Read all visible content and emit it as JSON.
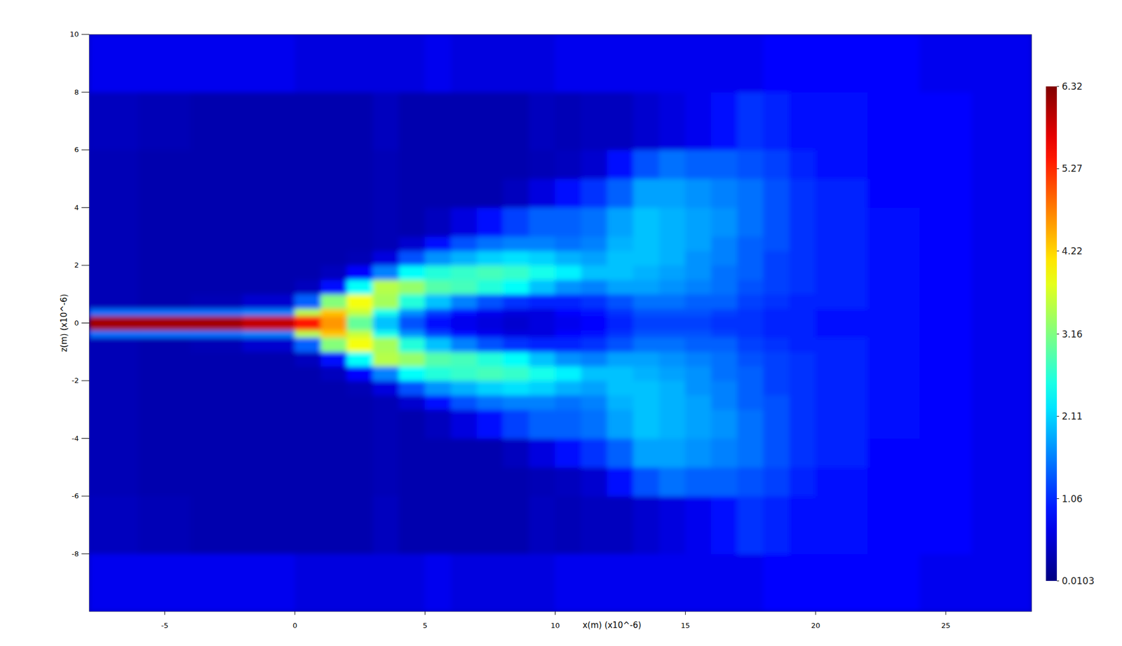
{
  "chart_data": {
    "type": "heatmap",
    "x_label": "x(m) (x10^-6)",
    "y_label": "z(m) (x10^-6)",
    "xlim": [
      -7.9,
      28.3
    ],
    "ylim": [
      -10,
      10
    ],
    "xticks": [
      -5,
      0,
      5,
      10,
      15,
      20,
      25
    ],
    "yticks": [
      -8,
      -6,
      -4,
      -2,
      0,
      2,
      4,
      6,
      8,
      10
    ],
    "x_bins": [
      -7.9,
      -6,
      -4,
      -2,
      0,
      1,
      2,
      3,
      4,
      5,
      6,
      7,
      8,
      9,
      10,
      11,
      12,
      13,
      14,
      15,
      16,
      17,
      18,
      19,
      20,
      22,
      24,
      26,
      28.3
    ],
    "y_bins": [
      -10,
      -8,
      -6,
      -5,
      -4,
      -3,
      -2.5,
      -2,
      -1.5,
      -1,
      -0.5,
      -0.25,
      0.25,
      0.5,
      1,
      1.5,
      2,
      2.5,
      3,
      4,
      5,
      6,
      8,
      10
    ],
    "cells": [
      [
        0.7,
        0.7,
        0.7,
        0.7,
        0.6,
        0.6,
        0.6,
        0.6,
        0.6,
        0.7,
        0.6,
        0.6,
        0.6,
        0.6,
        0.7,
        0.7,
        0.7,
        0.7,
        0.7,
        0.7,
        0.7,
        0.7,
        0.8,
        0.8,
        0.8,
        0.8,
        0.7,
        0.7
      ],
      [
        0.4,
        0.35,
        0.3,
        0.3,
        0.3,
        0.3,
        0.3,
        0.4,
        0.3,
        0.3,
        0.3,
        0.3,
        0.3,
        0.4,
        0.35,
        0.4,
        0.4,
        0.5,
        0.6,
        0.7,
        0.9,
        1.1,
        1.0,
        0.9,
        0.9,
        0.8,
        0.8,
        0.7
      ],
      [
        0.35,
        0.3,
        0.3,
        0.3,
        0.3,
        0.3,
        0.3,
        0.35,
        0.3,
        0.3,
        0.3,
        0.3,
        0.3,
        0.35,
        0.4,
        0.5,
        0.9,
        1.3,
        1.5,
        1.4,
        1.4,
        1.3,
        1.2,
        1.0,
        0.9,
        0.8,
        0.8,
        0.7
      ],
      [
        0.35,
        0.3,
        0.3,
        0.3,
        0.3,
        0.3,
        0.3,
        0.35,
        0.3,
        0.3,
        0.3,
        0.3,
        0.4,
        0.6,
        0.9,
        1.1,
        1.4,
        1.8,
        1.8,
        1.7,
        1.6,
        1.5,
        1.3,
        1.1,
        1.0,
        0.8,
        0.8,
        0.7
      ],
      [
        0.35,
        0.3,
        0.3,
        0.3,
        0.3,
        0.3,
        0.3,
        0.35,
        0.3,
        0.4,
        0.6,
        0.9,
        1.2,
        1.4,
        1.4,
        1.5,
        1.8,
        2.0,
        1.9,
        1.8,
        1.7,
        1.5,
        1.3,
        1.1,
        1.0,
        0.9,
        0.8,
        0.7
      ],
      [
        0.35,
        0.3,
        0.3,
        0.3,
        0.3,
        0.3,
        0.3,
        0.35,
        0.5,
        0.9,
        1.3,
        1.5,
        1.6,
        1.6,
        1.5,
        1.6,
        1.9,
        2.0,
        1.9,
        1.8,
        1.6,
        1.4,
        1.3,
        1.1,
        1.0,
        0.9,
        0.8,
        0.7
      ],
      [
        0.35,
        0.3,
        0.3,
        0.3,
        0.3,
        0.3,
        0.35,
        0.6,
        1.3,
        1.7,
        1.9,
        2.1,
        2.2,
        2.1,
        1.9,
        1.8,
        2.0,
        2.0,
        1.9,
        1.7,
        1.6,
        1.4,
        1.2,
        1.1,
        1.0,
        0.9,
        0.8,
        0.7
      ],
      [
        0.35,
        0.3,
        0.3,
        0.3,
        0.3,
        0.4,
        0.8,
        1.6,
        2.4,
        2.6,
        2.7,
        2.8,
        2.7,
        2.5,
        2.3,
        2.0,
        2.0,
        1.9,
        1.8,
        1.7,
        1.5,
        1.4,
        1.2,
        1.1,
        1.0,
        0.9,
        0.8,
        0.7
      ],
      [
        0.35,
        0.3,
        0.3,
        0.3,
        0.4,
        0.9,
        2.4,
        3.5,
        3.3,
        2.9,
        2.8,
        2.6,
        2.4,
        2.0,
        1.7,
        1.6,
        1.8,
        1.8,
        1.7,
        1.6,
        1.5,
        1.3,
        1.2,
        1.1,
        1.0,
        0.9,
        0.8,
        0.7
      ],
      [
        0.35,
        0.3,
        0.35,
        0.5,
        1.4,
        3.2,
        3.9,
        3.4,
        2.6,
        2.0,
        1.6,
        1.3,
        1.1,
        1.0,
        1.0,
        1.1,
        1.3,
        1.5,
        1.5,
        1.4,
        1.4,
        1.2,
        1.1,
        1.0,
        1.0,
        0.9,
        0.8,
        0.7
      ],
      [
        1.5,
        1.5,
        1.5,
        1.6,
        3.5,
        4.3,
        3.6,
        2.5,
        1.7,
        1.2,
        0.9,
        0.7,
        0.6,
        0.6,
        0.8,
        0.9,
        1.1,
        1.3,
        1.3,
        1.3,
        1.2,
        1.1,
        1.0,
        1.0,
        0.9,
        0.9,
        0.8,
        0.7
      ],
      [
        6.1,
        6.1,
        6.1,
        5.9,
        5.4,
        4.6,
        3.0,
        2.0,
        1.3,
        0.9,
        0.7,
        0.6,
        0.5,
        0.6,
        0.7,
        0.8,
        1.0,
        1.2,
        1.2,
        1.2,
        1.1,
        1.1,
        1.0,
        1.0,
        0.9,
        0.9,
        0.8,
        0.7
      ],
      [
        1.5,
        1.5,
        1.5,
        1.6,
        3.5,
        4.3,
        3.6,
        2.5,
        1.7,
        1.2,
        0.9,
        0.7,
        0.6,
        0.6,
        0.8,
        0.9,
        1.1,
        1.3,
        1.3,
        1.3,
        1.2,
        1.1,
        1.0,
        1.0,
        0.9,
        0.9,
        0.8,
        0.7
      ],
      [
        0.35,
        0.3,
        0.35,
        0.5,
        1.4,
        3.2,
        3.9,
        3.4,
        2.6,
        2.0,
        1.6,
        1.3,
        1.1,
        1.0,
        1.0,
        1.1,
        1.3,
        1.5,
        1.5,
        1.4,
        1.4,
        1.2,
        1.1,
        1.0,
        1.0,
        0.9,
        0.8,
        0.7
      ],
      [
        0.35,
        0.3,
        0.3,
        0.3,
        0.4,
        0.9,
        2.4,
        3.5,
        3.3,
        2.9,
        2.8,
        2.6,
        2.4,
        2.0,
        1.7,
        1.6,
        1.8,
        1.8,
        1.7,
        1.6,
        1.5,
        1.3,
        1.2,
        1.1,
        1.0,
        0.9,
        0.8,
        0.7
      ],
      [
        0.35,
        0.3,
        0.3,
        0.3,
        0.3,
        0.4,
        0.8,
        1.6,
        2.4,
        2.6,
        2.7,
        2.8,
        2.7,
        2.5,
        2.3,
        2.0,
        2.0,
        1.9,
        1.8,
        1.7,
        1.5,
        1.4,
        1.2,
        1.1,
        1.0,
        0.9,
        0.8,
        0.7
      ],
      [
        0.35,
        0.3,
        0.3,
        0.3,
        0.3,
        0.3,
        0.35,
        0.6,
        1.3,
        1.7,
        1.9,
        2.1,
        2.2,
        2.1,
        1.9,
        1.8,
        2.0,
        2.0,
        1.9,
        1.7,
        1.6,
        1.4,
        1.2,
        1.1,
        1.0,
        0.9,
        0.8,
        0.7
      ],
      [
        0.35,
        0.3,
        0.3,
        0.3,
        0.3,
        0.3,
        0.3,
        0.35,
        0.5,
        0.9,
        1.3,
        1.5,
        1.6,
        1.6,
        1.5,
        1.6,
        1.9,
        2.0,
        1.9,
        1.8,
        1.6,
        1.4,
        1.3,
        1.1,
        1.0,
        0.9,
        0.8,
        0.7
      ],
      [
        0.35,
        0.3,
        0.3,
        0.3,
        0.3,
        0.3,
        0.3,
        0.35,
        0.3,
        0.4,
        0.6,
        0.9,
        1.2,
        1.4,
        1.4,
        1.5,
        1.8,
        2.0,
        1.9,
        1.8,
        1.7,
        1.5,
        1.3,
        1.1,
        1.0,
        0.9,
        0.8,
        0.7
      ],
      [
        0.35,
        0.3,
        0.3,
        0.3,
        0.3,
        0.3,
        0.3,
        0.35,
        0.3,
        0.3,
        0.3,
        0.3,
        0.4,
        0.6,
        0.9,
        1.1,
        1.4,
        1.8,
        1.8,
        1.7,
        1.6,
        1.5,
        1.3,
        1.1,
        1.0,
        0.8,
        0.8,
        0.7
      ],
      [
        0.35,
        0.3,
        0.3,
        0.3,
        0.3,
        0.3,
        0.3,
        0.35,
        0.3,
        0.3,
        0.3,
        0.3,
        0.3,
        0.35,
        0.4,
        0.5,
        0.9,
        1.3,
        1.5,
        1.4,
        1.4,
        1.3,
        1.2,
        1.0,
        0.9,
        0.8,
        0.8,
        0.7
      ],
      [
        0.4,
        0.35,
        0.3,
        0.3,
        0.3,
        0.3,
        0.3,
        0.4,
        0.3,
        0.3,
        0.3,
        0.3,
        0.3,
        0.4,
        0.35,
        0.4,
        0.4,
        0.5,
        0.6,
        0.7,
        0.9,
        1.1,
        1.0,
        0.9,
        0.9,
        0.8,
        0.8,
        0.7
      ],
      [
        0.7,
        0.7,
        0.7,
        0.7,
        0.6,
        0.6,
        0.6,
        0.6,
        0.6,
        0.7,
        0.6,
        0.6,
        0.6,
        0.6,
        0.7,
        0.7,
        0.7,
        0.7,
        0.7,
        0.7,
        0.7,
        0.7,
        0.8,
        0.8,
        0.8,
        0.8,
        0.7,
        0.7
      ]
    ],
    "color_lim": [
      0.0103,
      6.32
    ],
    "color_ticks": [
      0.0103,
      1.06,
      2.11,
      3.16,
      4.22,
      5.27,
      6.32
    ]
  }
}
